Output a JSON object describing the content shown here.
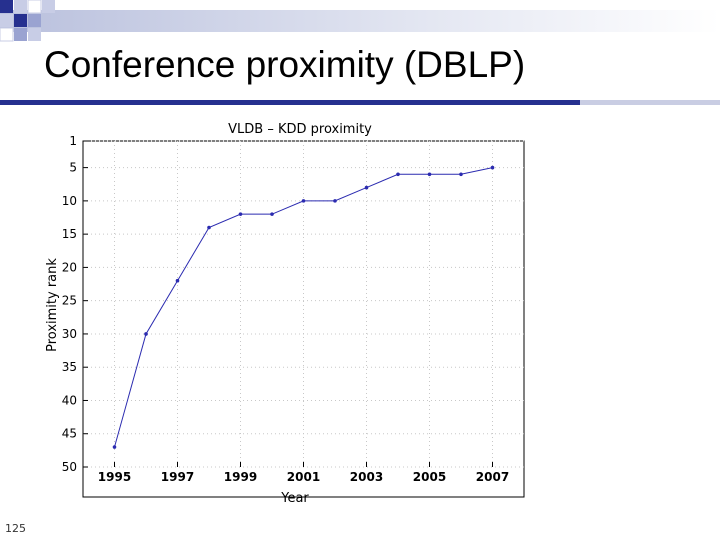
{
  "slide": {
    "title": "Conference proximity (DBLP)",
    "page_number": "125",
    "accent_color": "#1f2a8a"
  },
  "chart_data": {
    "type": "line",
    "title": "VLDB – KDD proximity",
    "xlabel": "Year",
    "ylabel": "Proximity rank",
    "x": [
      1995,
      1996,
      1997,
      1998,
      1999,
      2000,
      2001,
      2002,
      2003,
      2004,
      2005,
      2006,
      2007
    ],
    "series": [
      {
        "values": [
          47,
          30,
          22,
          14,
          12,
          12,
          10,
          10,
          8,
          6,
          6,
          6,
          5
        ],
        "color": "#2b2bb0"
      }
    ],
    "xlim": [
      1994,
      2008
    ],
    "ylim": [
      1,
      50
    ],
    "y_reversed": true,
    "xticks": [
      1995,
      1997,
      1999,
      2001,
      2003,
      2005,
      2007
    ],
    "yticks": [
      1,
      5,
      10,
      15,
      20,
      25,
      30,
      35,
      40,
      45,
      50
    ],
    "grid": true
  }
}
